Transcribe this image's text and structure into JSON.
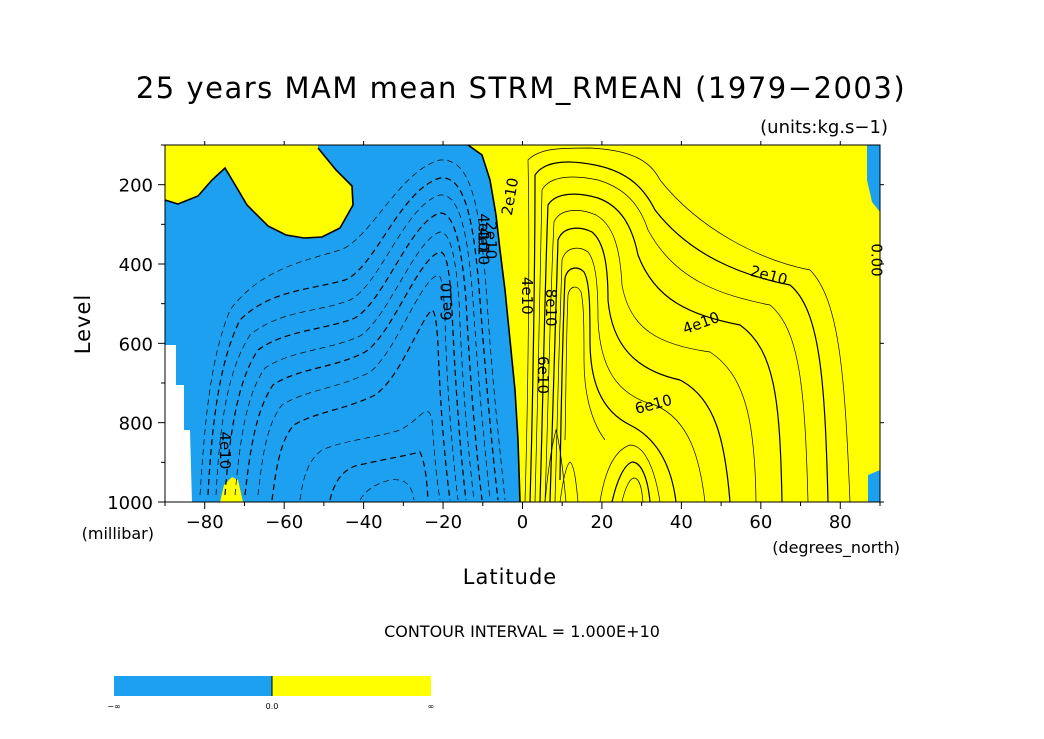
{
  "chart_data": {
    "type": "contour",
    "title": "25 years MAM mean STRM_RMEAN (1979−2003)",
    "units_label": "(units:kg.s−1)",
    "xlabel": "Latitude",
    "xunits": "(degrees_north)",
    "ylabel": "Level",
    "yunits": "(millibar)",
    "xlim": [
      -90,
      90
    ],
    "ylim": [
      1000,
      100
    ],
    "x_ticks": [
      -80,
      -60,
      -40,
      -20,
      0,
      20,
      40,
      60,
      80
    ],
    "y_ticks": [
      200,
      400,
      600,
      800,
      1000
    ],
    "contour_interval_text": "CONTOUR INTERVAL = 1.000E+10",
    "contour_labels": [
      {
        "text": "2e10",
        "x": -3,
        "y": 230,
        "rot": -80
      },
      {
        "text": "2e10",
        "x": -8,
        "y": 340,
        "rot": 90
      },
      {
        "text": "4e10",
        "x": -10,
        "y": 320,
        "rot": 90
      },
      {
        "text": "4e10",
        "x": -10,
        "y": 355,
        "rot": 90
      },
      {
        "text": "4e10",
        "x": 1,
        "y": 480,
        "rot": 90
      },
      {
        "text": "8e10",
        "x": 7,
        "y": 510,
        "rot": 90
      },
      {
        "text": "6e10",
        "x": -19,
        "y": 495,
        "rot": -90
      },
      {
        "text": "6e10",
        "x": 5,
        "y": 680,
        "rot": 90
      },
      {
        "text": "2e10",
        "x": 62,
        "y": 430,
        "rot": 15
      },
      {
        "text": "4e10",
        "x": 45,
        "y": 550,
        "rot": -20
      },
      {
        "text": "6e10",
        "x": 33,
        "y": 755,
        "rot": -15
      },
      {
        "text": "4e10",
        "x": -75,
        "y": 870,
        "rot": 90
      },
      {
        "text": "0.00",
        "x": 89,
        "y": 390,
        "rot": 90
      }
    ],
    "colorbar": {
      "colors": [
        "#1ea0f0",
        "#ffff00"
      ],
      "labels": [
        "−∞",
        "0.0",
        "∞"
      ]
    }
  }
}
